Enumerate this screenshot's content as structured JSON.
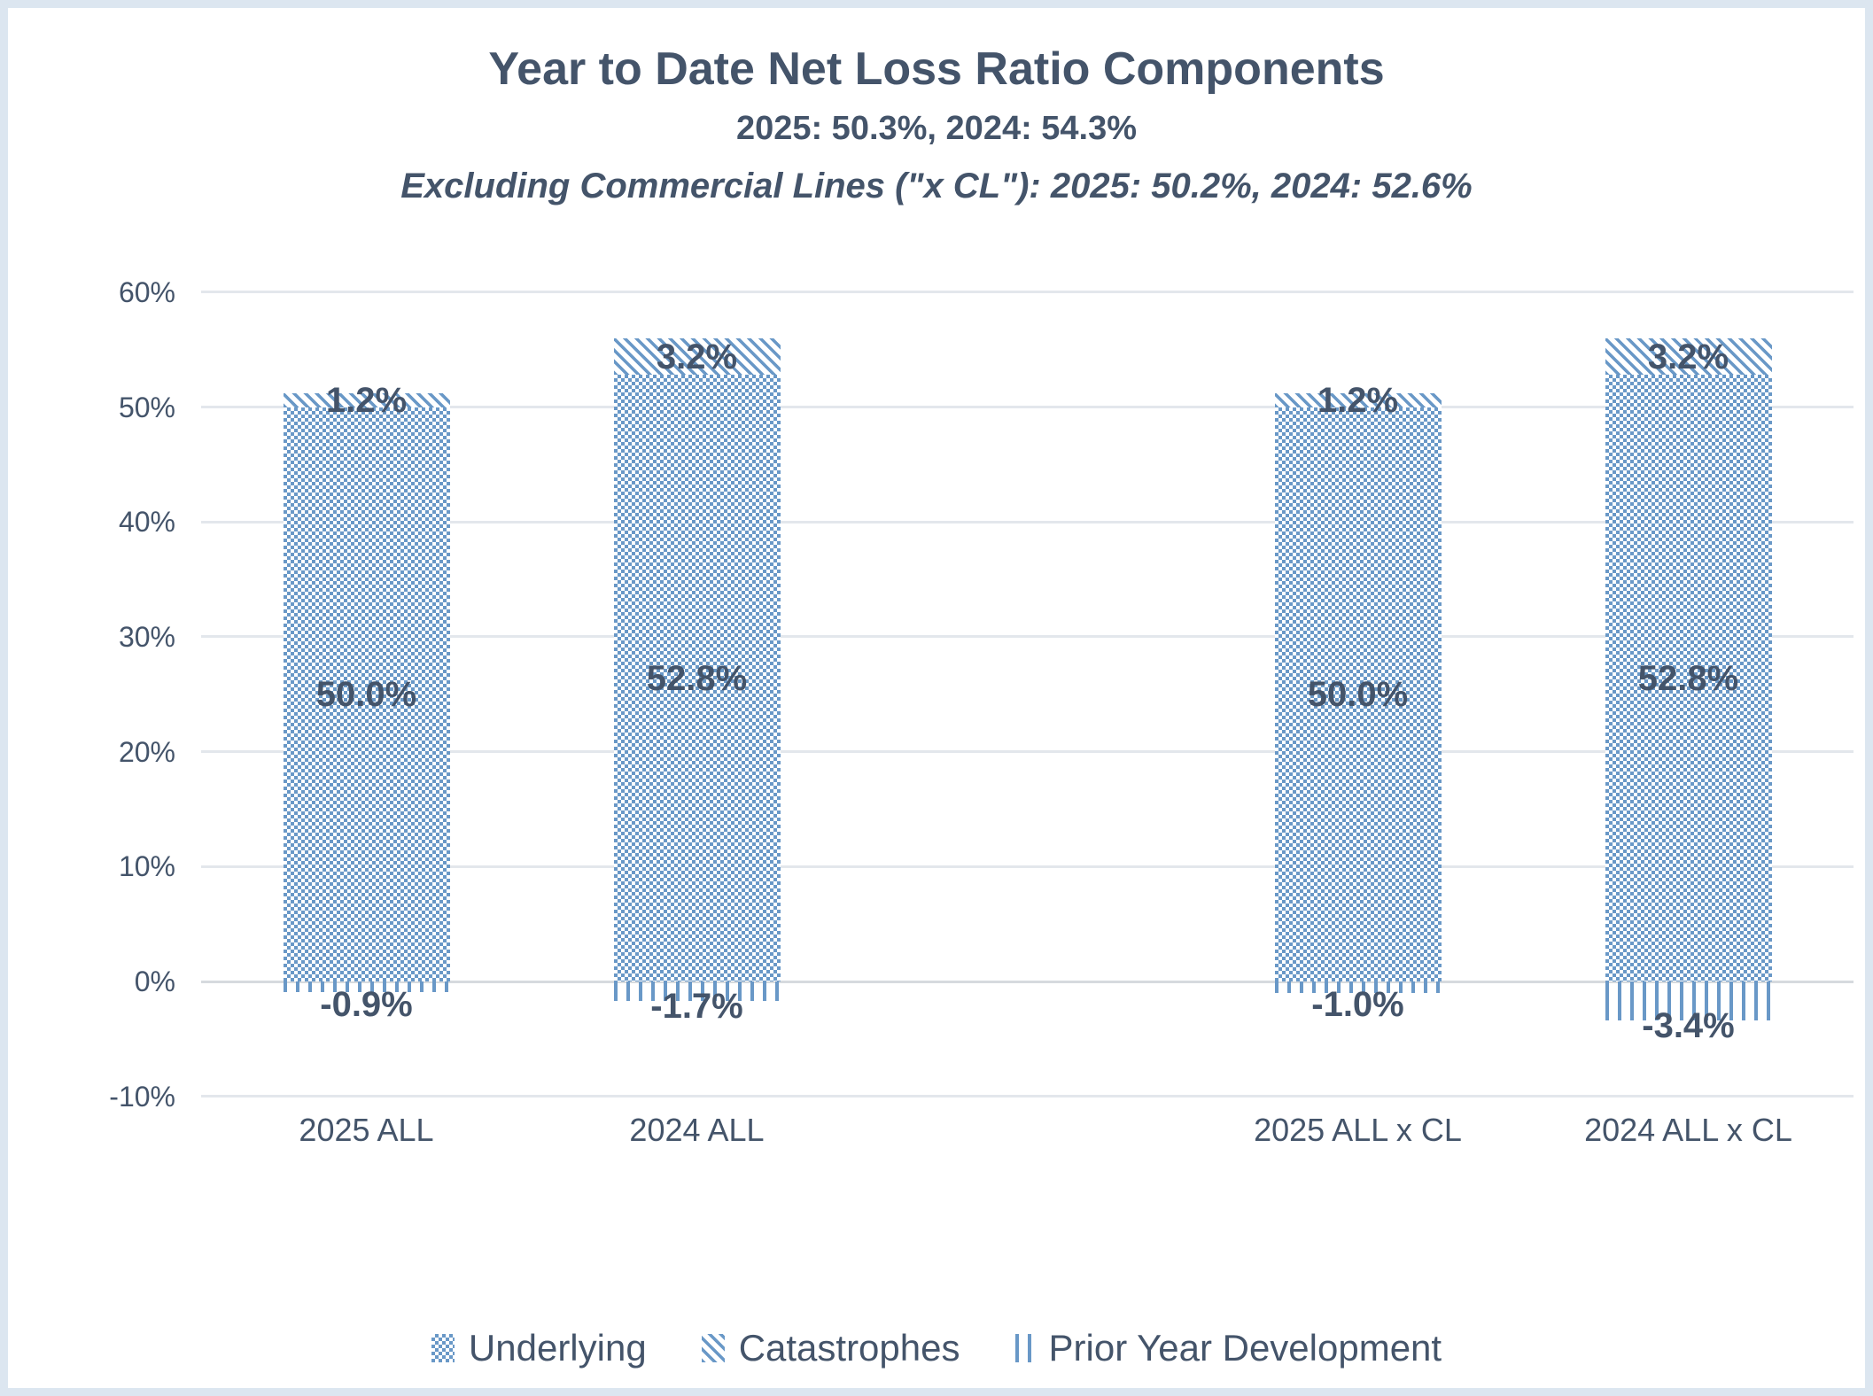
{
  "header": {
    "title": "Year to Date Net Loss Ratio Components",
    "subtitle": "2025: 50.3%, 2024: 54.3%",
    "subtitle2": "Excluding Commercial Lines (\"x CL\"): 2025: 50.2%, 2024: 52.6%"
  },
  "colors": {
    "pattern_blue": "#6998c7",
    "text": "#44546A",
    "gridline": "#e3e7ec",
    "frame": "#dce6f0"
  },
  "chart_data": {
    "type": "bar",
    "stacked": true,
    "title": "Year to Date Net Loss Ratio Components",
    "subtitle": "2025: 50.3%, 2024: 54.3%",
    "subtitle2": "Excluding Commercial Lines (\"x CL\"): 2025: 50.2%, 2024: 52.6%",
    "categories": [
      "2025 ALL",
      "2024 ALL",
      "",
      "2025 ALL x CL",
      "2024 ALL x CL"
    ],
    "series": [
      {
        "name": "Underlying",
        "pattern": "checker",
        "values": [
          50.0,
          52.8,
          null,
          50.0,
          52.8
        ]
      },
      {
        "name": "Catastrophes",
        "pattern": "hatch",
        "values": [
          1.2,
          3.2,
          null,
          1.2,
          3.2
        ]
      },
      {
        "name": "Prior Year Development",
        "pattern": "vlines",
        "values": [
          -0.9,
          -1.7,
          null,
          -1.0,
          -3.4
        ]
      }
    ],
    "totals": {
      "2025 ALL": 50.3,
      "2024 ALL": 54.3,
      "2025 ALL x CL": 50.2,
      "2024 ALL x CL": 52.6
    },
    "xlabel": "",
    "ylabel": "",
    "ylim": [
      -10,
      60
    ],
    "ytick_step": 10,
    "ytick_labels": [
      "-10%",
      "0%",
      "10%",
      "20%",
      "30%",
      "40%",
      "50%",
      "60%"
    ],
    "grid": true,
    "legend_position": "bottom",
    "data_label_format": "x.x%"
  }
}
